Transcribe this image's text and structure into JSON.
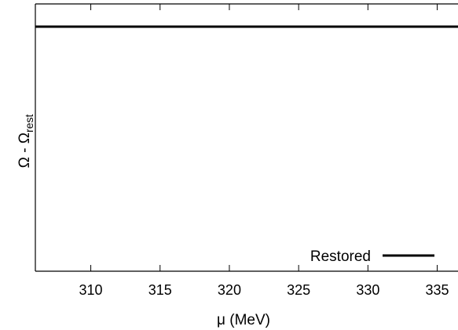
{
  "chart_data": {
    "type": "line",
    "title": "",
    "xlabel": "μ (MeV)",
    "ylabel": {
      "main": "Ω - Ω",
      "subscript": "rest"
    },
    "xlim": [
      306,
      336.5
    ],
    "ylim": [
      0,
      1
    ],
    "xticks": [
      310,
      315,
      320,
      325,
      330,
      335
    ],
    "xtick_labels": [
      "310",
      "315",
      "320",
      "325",
      "330",
      "335"
    ],
    "yticks_labeled": false,
    "grid": false,
    "legend": {
      "position": "bottom-right"
    },
    "series": [
      {
        "name": "Restored",
        "color": "#000000",
        "x": [
          306,
          336.5
        ],
        "y": [
          0.915,
          0.915
        ]
      }
    ]
  }
}
